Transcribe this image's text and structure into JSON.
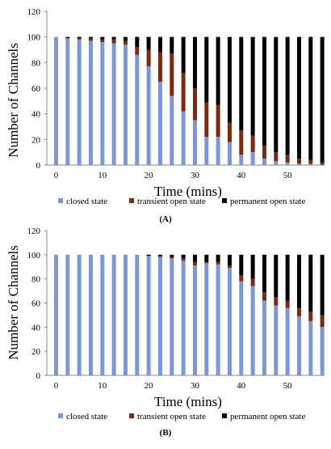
{
  "chart_data": [
    {
      "type": "bar",
      "stacked": true,
      "panel_label": "(A)",
      "xlabel": "Time (mins)",
      "ylabel": "Number of Channels",
      "xlim": [
        -2,
        58
      ],
      "ylim": [
        0,
        120
      ],
      "x_ticks": [
        0,
        10,
        20,
        30,
        40,
        50
      ],
      "y_ticks": [
        0,
        20,
        40,
        60,
        80,
        100,
        120
      ],
      "legend_position": "bottom",
      "x": [
        0,
        2.5,
        5,
        7.5,
        10,
        12.5,
        15,
        17.5,
        20,
        22.5,
        25,
        27.5,
        30,
        32.5,
        35,
        37.5,
        40,
        42.5,
        45,
        47.5,
        50,
        52.5,
        55,
        57.5
      ],
      "series": [
        {
          "name": "closed state",
          "color": "#7c97d8",
          "values": [
            100,
            99,
            98,
            97,
            96,
            95,
            94,
            86,
            77,
            65,
            54,
            42,
            35,
            22,
            22,
            18,
            8,
            10,
            5,
            3,
            2,
            1,
            1,
            0
          ]
        },
        {
          "name": "transient open state",
          "color": "#7b2a0e",
          "values": [
            0,
            0,
            1,
            2,
            2,
            3,
            3,
            6,
            13,
            23,
            33,
            30,
            25,
            27,
            25,
            15,
            19,
            13,
            10,
            7,
            6,
            4,
            3,
            2
          ]
        },
        {
          "name": "permanent open state",
          "color": "#000000",
          "values": [
            0,
            1,
            1,
            1,
            2,
            2,
            3,
            8,
            10,
            12,
            13,
            28,
            40,
            51,
            53,
            67,
            73,
            77,
            85,
            90,
            92,
            95,
            96,
            98
          ]
        }
      ]
    },
    {
      "type": "bar",
      "stacked": true,
      "panel_label": "(B)",
      "xlabel": "Time (mins)",
      "ylabel": "Number of Channels",
      "xlim": [
        -2,
        58
      ],
      "ylim": [
        0,
        120
      ],
      "x_ticks": [
        0,
        10,
        20,
        30,
        40,
        50
      ],
      "y_ticks": [
        0,
        20,
        40,
        60,
        80,
        100,
        120
      ],
      "legend_position": "bottom",
      "x": [
        0,
        2.5,
        5,
        7.5,
        10,
        12.5,
        15,
        17.5,
        20,
        22.5,
        25,
        27.5,
        30,
        32.5,
        35,
        37.5,
        40,
        42.5,
        45,
        47.5,
        50,
        52.5,
        55,
        57.5
      ],
      "series": [
        {
          "name": "closed state",
          "color": "#7c97d8",
          "values": [
            100,
            100,
            100,
            100,
            100,
            100,
            100,
            100,
            99,
            98,
            97,
            95,
            91,
            93,
            92,
            89,
            78,
            74,
            62,
            58,
            56,
            49,
            45,
            40
          ]
        },
        {
          "name": "transient open state",
          "color": "#7b2a0e",
          "values": [
            0,
            0,
            0,
            0,
            0,
            0,
            0,
            0,
            0,
            1,
            1,
            2,
            3,
            1,
            2,
            2,
            5,
            6,
            7,
            7,
            6,
            7,
            8,
            10
          ]
        },
        {
          "name": "permanent open state",
          "color": "#000000",
          "values": [
            0,
            0,
            0,
            0,
            0,
            0,
            0,
            0,
            1,
            1,
            2,
            3,
            6,
            6,
            6,
            9,
            17,
            20,
            31,
            35,
            38,
            44,
            47,
            50
          ]
        }
      ]
    }
  ]
}
